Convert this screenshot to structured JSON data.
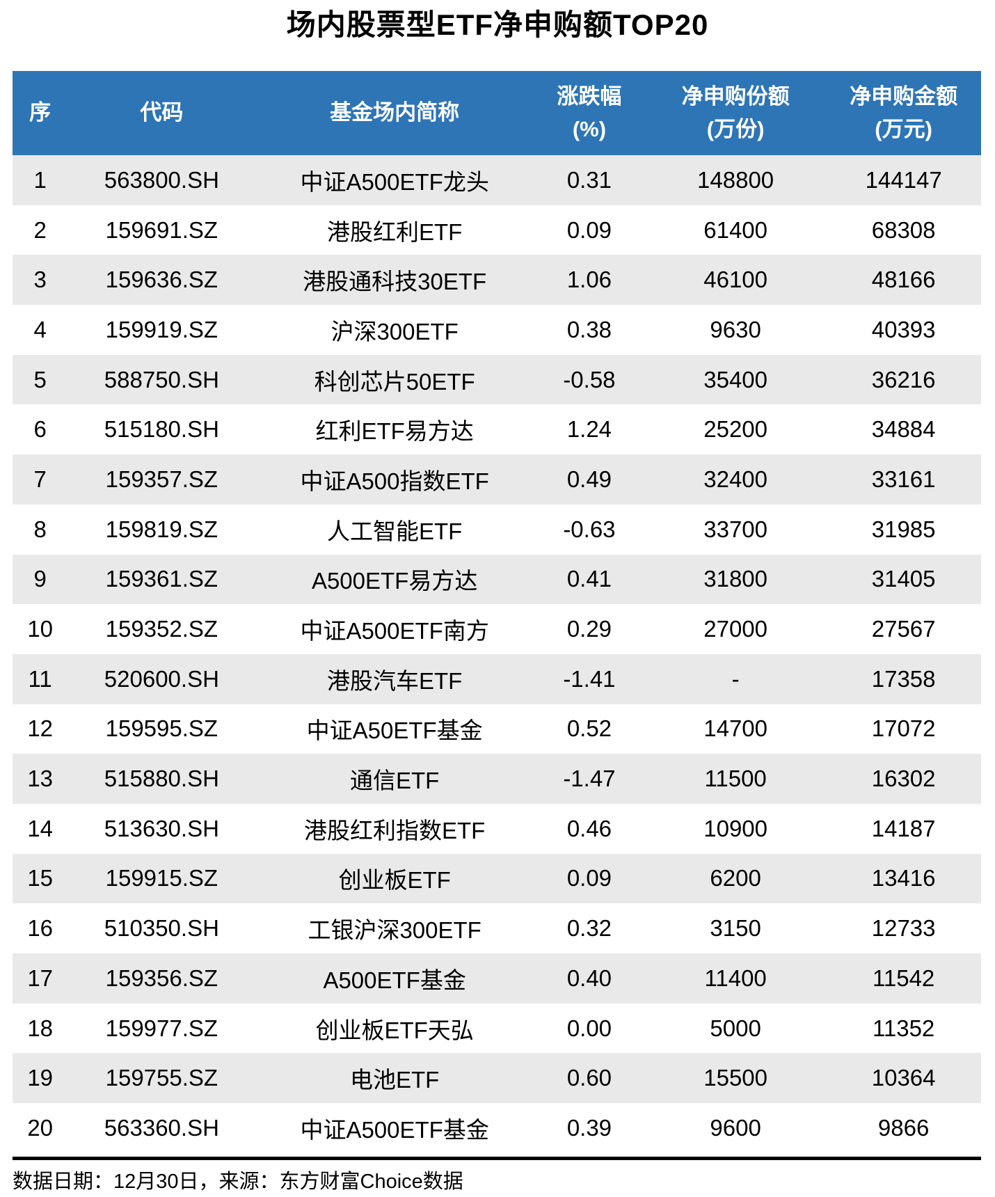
{
  "colors": {
    "header_bg": "#2E75B6",
    "header_text": "#FFFFFF",
    "row_stripe": "#E9E9E9",
    "row_plain": "#FFFFFF",
    "divider": "#000000",
    "text": "#000000"
  },
  "chart_data": {
    "type": "table",
    "title": "场内股票型ETF净申购额TOP20",
    "columns": [
      {
        "line1": "序",
        "line2": ""
      },
      {
        "line1": "代码",
        "line2": ""
      },
      {
        "line1": "基金场内简称",
        "line2": ""
      },
      {
        "line1": "涨跌幅",
        "line2": "(%)"
      },
      {
        "line1": "净申购份额",
        "line2": "(万份)"
      },
      {
        "line1": "净申购金额",
        "line2": "(万元)"
      }
    ],
    "rows": [
      {
        "seq": "1",
        "code": "563800.SH",
        "name": "中证A500ETF龙头",
        "change": "0.31",
        "shares": "148800",
        "amount": "144147"
      },
      {
        "seq": "2",
        "code": "159691.SZ",
        "name": "港股红利ETF",
        "change": "0.09",
        "shares": "61400",
        "amount": "68308"
      },
      {
        "seq": "3",
        "code": "159636.SZ",
        "name": "港股通科技30ETF",
        "change": "1.06",
        "shares": "46100",
        "amount": "48166"
      },
      {
        "seq": "4",
        "code": "159919.SZ",
        "name": "沪深300ETF",
        "change": "0.38",
        "shares": "9630",
        "amount": "40393"
      },
      {
        "seq": "5",
        "code": "588750.SH",
        "name": "科创芯片50ETF",
        "change": "-0.58",
        "shares": "35400",
        "amount": "36216"
      },
      {
        "seq": "6",
        "code": "515180.SH",
        "name": "红利ETF易方达",
        "change": "1.24",
        "shares": "25200",
        "amount": "34884"
      },
      {
        "seq": "7",
        "code": "159357.SZ",
        "name": "中证A500指数ETF",
        "change": "0.49",
        "shares": "32400",
        "amount": "33161"
      },
      {
        "seq": "8",
        "code": "159819.SZ",
        "name": "人工智能ETF",
        "change": "-0.63",
        "shares": "33700",
        "amount": "31985"
      },
      {
        "seq": "9",
        "code": "159361.SZ",
        "name": "A500ETF易方达",
        "change": "0.41",
        "shares": "31800",
        "amount": "31405"
      },
      {
        "seq": "10",
        "code": "159352.SZ",
        "name": "中证A500ETF南方",
        "change": "0.29",
        "shares": "27000",
        "amount": "27567"
      },
      {
        "seq": "11",
        "code": "520600.SH",
        "name": "港股汽车ETF",
        "change": "-1.41",
        "shares": "-",
        "amount": "17358"
      },
      {
        "seq": "12",
        "code": "159595.SZ",
        "name": "中证A50ETF基金",
        "change": "0.52",
        "shares": "14700",
        "amount": "17072"
      },
      {
        "seq": "13",
        "code": "515880.SH",
        "name": "通信ETF",
        "change": "-1.47",
        "shares": "11500",
        "amount": "16302"
      },
      {
        "seq": "14",
        "code": "513630.SH",
        "name": "港股红利指数ETF",
        "change": "0.46",
        "shares": "10900",
        "amount": "14187"
      },
      {
        "seq": "15",
        "code": "159915.SZ",
        "name": "创业板ETF",
        "change": "0.09",
        "shares": "6200",
        "amount": "13416"
      },
      {
        "seq": "16",
        "code": "510350.SH",
        "name": "工银沪深300ETF",
        "change": "0.32",
        "shares": "3150",
        "amount": "12733"
      },
      {
        "seq": "17",
        "code": "159356.SZ",
        "name": "A500ETF基金",
        "change": "0.40",
        "shares": "11400",
        "amount": "11542"
      },
      {
        "seq": "18",
        "code": "159977.SZ",
        "name": "创业板ETF天弘",
        "change": "0.00",
        "shares": "5000",
        "amount": "11352"
      },
      {
        "seq": "19",
        "code": "159755.SZ",
        "name": "电池ETF",
        "change": "0.60",
        "shares": "15500",
        "amount": "10364"
      },
      {
        "seq": "20",
        "code": "563360.SH",
        "name": "中证A500ETF基金",
        "change": "0.39",
        "shares": "9600",
        "amount": "9866"
      }
    ],
    "footer": "数据日期：12月30日，来源：东方财富Choice数据"
  }
}
